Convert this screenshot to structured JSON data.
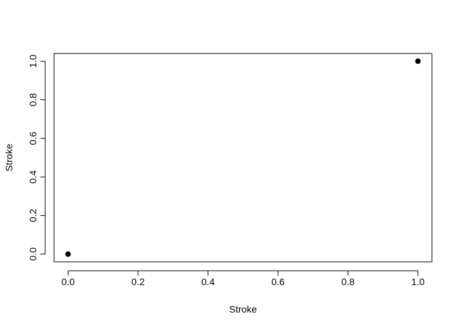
{
  "chart_data": {
    "type": "scatter",
    "title": "",
    "xlabel": "Stroke",
    "ylabel": "Stroke",
    "xlim": [
      -0.04,
      1.04
    ],
    "ylim": [
      -0.04,
      1.04
    ],
    "x_ticks": [
      0.0,
      0.2,
      0.4,
      0.6,
      0.8,
      1.0
    ],
    "x_tick_labels": [
      "0.0",
      "0.2",
      "0.4",
      "0.6",
      "0.8",
      "1.0"
    ],
    "y_ticks": [
      0.0,
      0.2,
      0.4,
      0.6,
      0.8,
      1.0
    ],
    "y_tick_labels": [
      "0.0",
      "0.2",
      "0.4",
      "0.6",
      "0.8",
      "1.0"
    ],
    "grid": false,
    "legend": "none",
    "marker_color": "#000000",
    "series": [
      {
        "points": [
          {
            "x": 0.0,
            "y": 0.0
          },
          {
            "x": 1.0,
            "y": 1.0
          }
        ]
      }
    ]
  }
}
